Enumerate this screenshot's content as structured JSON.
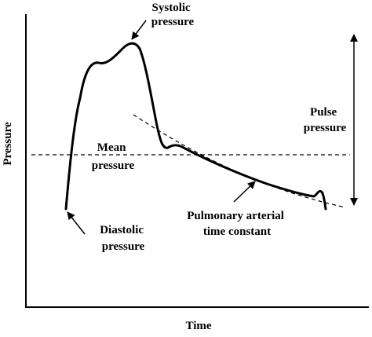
{
  "axes": {
    "x_label": "Time",
    "y_label": "Pressure"
  },
  "annotations": {
    "systolic": [
      "Systolic",
      "pressure"
    ],
    "pulse": [
      "Pulse",
      "pressure"
    ],
    "mean": [
      "Mean",
      "pressure"
    ],
    "diastolic": [
      "Diastolic",
      "pressure"
    ],
    "time_constant": [
      "Pulmonary arterial",
      "time constant"
    ]
  },
  "colors": {
    "line": "#000000",
    "background": "#ffffff"
  }
}
